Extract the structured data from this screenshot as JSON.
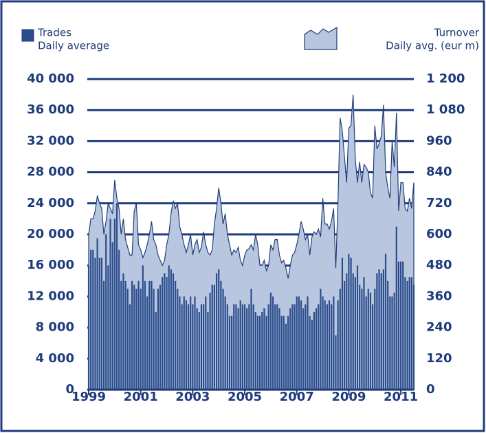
{
  "chart_data": {
    "type": "bar+area",
    "categories": [
      "1999",
      null,
      null,
      null,
      null,
      null,
      null,
      null,
      null,
      null,
      null,
      null,
      null,
      null,
      null,
      null,
      null,
      null,
      null,
      null,
      null,
      null,
      null,
      null,
      "2001",
      null,
      null,
      null,
      null,
      null,
      null,
      null,
      null,
      null,
      null,
      null,
      null,
      null,
      null,
      null,
      null,
      null,
      null,
      null,
      null,
      null,
      null,
      null,
      "2003",
      null,
      null,
      null,
      null,
      null,
      null,
      null,
      null,
      null,
      null,
      null,
      null,
      null,
      null,
      null,
      null,
      null,
      null,
      null,
      null,
      null,
      null,
      null,
      "2005",
      null,
      null,
      null,
      null,
      null,
      null,
      null,
      null,
      null,
      null,
      null,
      null,
      null,
      null,
      null,
      null,
      null,
      null,
      null,
      null,
      null,
      null,
      null,
      "2007",
      null,
      null,
      null,
      null,
      null,
      null,
      null,
      null,
      null,
      null,
      null,
      null,
      null,
      null,
      null,
      null,
      null,
      null,
      null,
      null,
      null,
      null,
      null,
      "2009",
      null,
      null,
      null,
      null,
      null,
      null,
      null,
      null,
      null,
      null,
      null,
      null,
      null,
      null,
      null,
      null,
      null,
      null,
      null,
      null,
      null,
      null,
      null,
      "2011",
      null,
      null,
      null,
      null,
      null,
      null
    ],
    "series": [
      {
        "name": "Trades",
        "subtitle": "Daily average",
        "type": "bar",
        "axis": "y",
        "color": "#2b4d8c",
        "values": [
          16000,
          18000,
          18000,
          17000,
          19500,
          17000,
          17000,
          14000,
          20000,
          16000,
          22000,
          19000,
          22000,
          24000,
          18000,
          14000,
          15000,
          14000,
          13000,
          11000,
          14000,
          13500,
          13000,
          14000,
          13000,
          16000,
          14000,
          12000,
          14000,
          14000,
          13000,
          10000,
          13000,
          13500,
          14500,
          15000,
          14500,
          16000,
          15500,
          15000,
          14000,
          13000,
          12000,
          11000,
          12000,
          11500,
          11000,
          12000,
          11000,
          12000,
          10500,
          10000,
          11000,
          11000,
          12000,
          10000,
          12500,
          13500,
          13500,
          15000,
          15500,
          14000,
          13000,
          12000,
          11000,
          9500,
          9500,
          11000,
          11000,
          10500,
          11500,
          11000,
          11000,
          10500,
          11000,
          13000,
          11000,
          10000,
          9500,
          9500,
          10000,
          10500,
          9500,
          11000,
          12500,
          12000,
          11000,
          11000,
          10500,
          9500,
          9500,
          8500,
          9500,
          10500,
          11000,
          11000,
          12000,
          12000,
          11500,
          10500,
          11000,
          12000,
          9500,
          9000,
          10000,
          10500,
          11000,
          13000,
          12000,
          11500,
          11000,
          11500,
          11000,
          12000,
          7000,
          11500,
          13000,
          17000,
          14000,
          15000,
          17500,
          17000,
          15000,
          14500,
          16000,
          13500,
          13000,
          14500,
          12000,
          13000,
          12500,
          11000,
          13000,
          15000,
          15500,
          15000,
          15500,
          17500,
          14000,
          12000,
          12000,
          12500,
          21000,
          16500,
          16500,
          16500,
          14500,
          14000,
          14500,
          14500,
          13500
        ]
      },
      {
        "name": "Turnover",
        "subtitle": "Daily avg. (eur m)",
        "type": "area",
        "axis": "y2",
        "color": "#b9c6df",
        "line_color": "#1f3d7a",
        "values": [
          600,
          660,
          660,
          690,
          750,
          720,
          700,
          600,
          650,
          720,
          700,
          680,
          810,
          740,
          700,
          600,
          660,
          580,
          550,
          520,
          520,
          690,
          720,
          560,
          540,
          510,
          530,
          560,
          600,
          650,
          580,
          560,
          520,
          500,
          480,
          500,
          560,
          600,
          680,
          730,
          700,
          720,
          630,
          600,
          560,
          530,
          560,
          600,
          520,
          560,
          580,
          530,
          550,
          610,
          560,
          530,
          520,
          540,
          640,
          700,
          780,
          720,
          640,
          680,
          600,
          560,
          520,
          540,
          530,
          550,
          500,
          480,
          520,
          540,
          545,
          560,
          540,
          600,
          560,
          480,
          480,
          500,
          460,
          480,
          560,
          540,
          580,
          580,
          520,
          490,
          500,
          470,
          430,
          480,
          520,
          530,
          560,
          600,
          650,
          620,
          580,
          600,
          520,
          590,
          610,
          600,
          620,
          590,
          740,
          640,
          640,
          620,
          650,
          700,
          470,
          720,
          1050,
          1000,
          900,
          800,
          1010,
          1020,
          1140,
          890,
          800,
          880,
          800,
          870,
          860,
          840,
          760,
          740,
          1020,
          930,
          950,
          980,
          1100,
          840,
          780,
          740,
          960,
          860,
          1070,
          690,
          800,
          800,
          700,
          690,
          740,
          700,
          800
        ]
      }
    ],
    "ylim": [
      0,
      40000
    ],
    "yticks": [
      0,
      {
        "value": 4000,
        "label": "4 000"
      },
      {
        "value": 8000,
        "label": "8 000"
      },
      {
        "value": 12000,
        "label": "12 000"
      },
      {
        "value": 16000,
        "label": "16 000"
      },
      {
        "value": 20000,
        "label": "20 000"
      },
      {
        "value": 24000,
        "label": "24 000"
      },
      {
        "value": 28000,
        "label": "28 000"
      },
      {
        "value": 32000,
        "label": "32 000"
      },
      {
        "value": 36000,
        "label": "36 000"
      },
      {
        "value": 40000,
        "label": "40 000"
      }
    ],
    "y2lim": [
      0,
      1200
    ],
    "y2ticks": [
      0,
      120,
      240,
      360,
      480,
      600,
      720,
      840,
      960,
      {
        "value": 1080,
        "label": "1 080"
      },
      {
        "value": 1200,
        "label": "1 200"
      }
    ],
    "grid": true
  }
}
